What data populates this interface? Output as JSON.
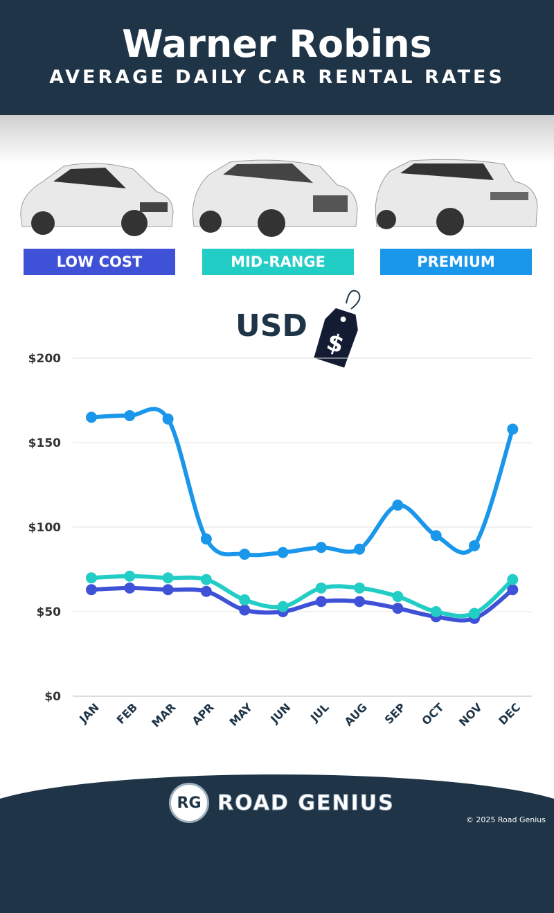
{
  "header": {
    "title": "Warner Robins",
    "subtitle": "AVERAGE DAILY CAR RENTAL RATES"
  },
  "categories": [
    {
      "label": "LOW COST",
      "color": "#3f51d6"
    },
    {
      "label": "MID-RANGE",
      "color": "#22cdc5"
    },
    {
      "label": "PREMIUM",
      "color": "#1a96ea"
    }
  ],
  "currency": {
    "label": "USD",
    "tag_symbol": "$"
  },
  "chart_data": {
    "type": "line",
    "categories": [
      "JAN",
      "FEB",
      "MAR",
      "APR",
      "MAY",
      "JUN",
      "JUL",
      "AUG",
      "SEP",
      "OCT",
      "NOV",
      "DEC"
    ],
    "yticks": [
      "$0",
      "$50",
      "$100",
      "$150",
      "$200"
    ],
    "ylim": [
      0,
      200
    ],
    "grid": true,
    "series": [
      {
        "name": "LOW COST",
        "color": "#3f51d6",
        "values": [
          63,
          64,
          63,
          62,
          51,
          50,
          56,
          56,
          52,
          47,
          46,
          63
        ]
      },
      {
        "name": "MID-RANGE",
        "color": "#22cdc5",
        "values": [
          70,
          71,
          70,
          69,
          57,
          53,
          64,
          64,
          59,
          50,
          49,
          69
        ]
      },
      {
        "name": "PREMIUM",
        "color": "#1a96ea",
        "values": [
          165,
          166,
          164,
          93,
          84,
          85,
          88,
          87,
          113,
          95,
          89,
          158
        ]
      }
    ]
  },
  "footer": {
    "logo_initials": "RG",
    "brand": "ROAD GENIUS",
    "copyright": "© 2025 Road Genius"
  }
}
